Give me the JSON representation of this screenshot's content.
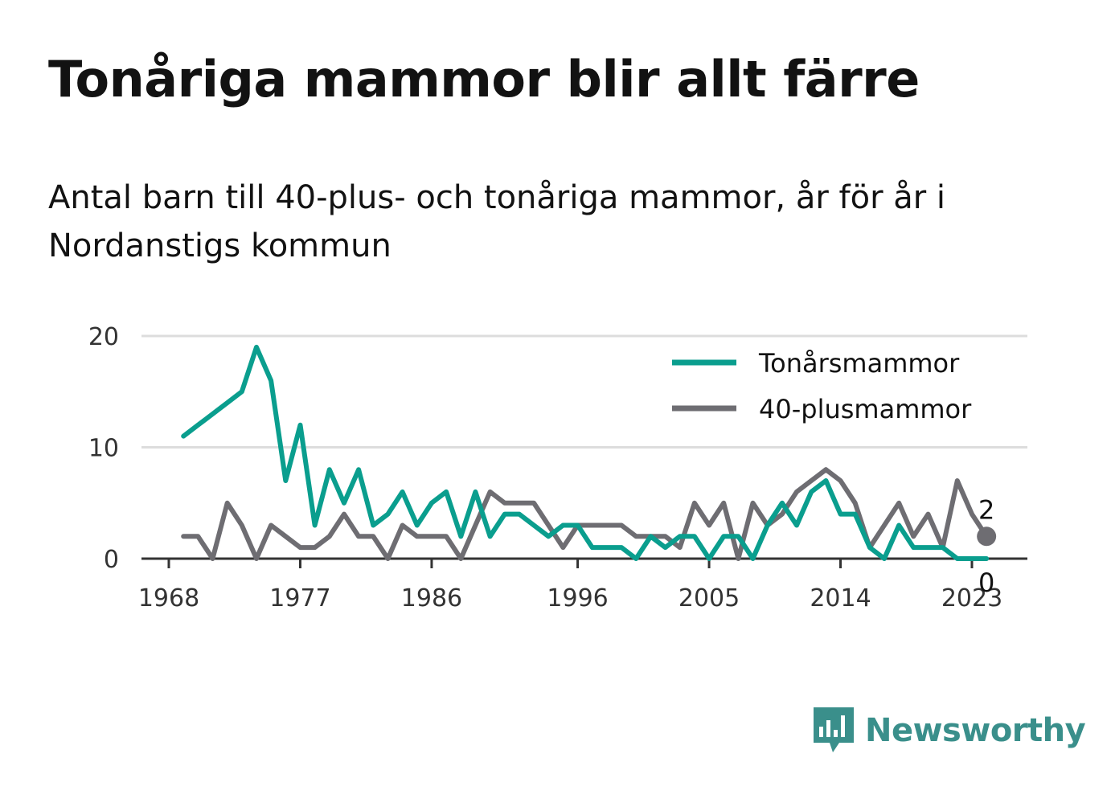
{
  "title": "Tonåriga mammor blir allt färre",
  "subtitle": "Antal barn till 40-plus- och tonåriga mammor, år för år i Nordanstigs kommun",
  "brand": {
    "name": "Newsworthy",
    "color": "#3a8f8b",
    "icon": "bar-chart-speech-bubble-icon"
  },
  "chart_data": {
    "type": "line",
    "xlim": [
      1966,
      2026
    ],
    "ylim": [
      0,
      20
    ],
    "y_ticks": [
      0,
      10,
      20
    ],
    "x_ticks": [
      1968,
      1977,
      1986,
      1996,
      2005,
      2014,
      2023
    ],
    "grid": true,
    "legend_position": "top-right",
    "series": [
      {
        "name": "Tonårsmammor",
        "color": "#0a9e8e",
        "x": [
          1969,
          1970,
          1971,
          1972,
          1973,
          1974,
          1975,
          1976,
          1977,
          1978,
          1979,
          1980,
          1981,
          1982,
          1983,
          1984,
          1985,
          1986,
          1987,
          1988,
          1989,
          1990,
          1991,
          1992,
          1993,
          1994,
          1995,
          1996,
          1997,
          1998,
          1999,
          2000,
          2001,
          2002,
          2003,
          2004,
          2005,
          2006,
          2007,
          2008,
          2009,
          2010,
          2011,
          2012,
          2013,
          2014,
          2015,
          2016,
          2017,
          2018,
          2019,
          2020,
          2021,
          2022,
          2023,
          2024
        ],
        "values": [
          11,
          12,
          13,
          14,
          15,
          19,
          16,
          7,
          12,
          3,
          8,
          5,
          8,
          3,
          4,
          6,
          3,
          5,
          6,
          2,
          6,
          2,
          4,
          4,
          3,
          2,
          3,
          3,
          1,
          1,
          1,
          0,
          2,
          1,
          2,
          2,
          0,
          2,
          2,
          0,
          3,
          5,
          3,
          6,
          7,
          4,
          4,
          1,
          0,
          3,
          1,
          1,
          1,
          0,
          0,
          0
        ],
        "end_label": "0"
      },
      {
        "name": "40-plusmammor",
        "color": "#6e6d72",
        "x": [
          1969,
          1970,
          1971,
          1972,
          1973,
          1974,
          1975,
          1976,
          1977,
          1978,
          1979,
          1980,
          1981,
          1982,
          1983,
          1984,
          1985,
          1986,
          1987,
          1988,
          1989,
          1990,
          1991,
          1992,
          1993,
          1994,
          1995,
          1996,
          1997,
          1998,
          1999,
          2000,
          2001,
          2002,
          2003,
          2004,
          2005,
          2006,
          2007,
          2008,
          2009,
          2010,
          2011,
          2012,
          2013,
          2014,
          2015,
          2016,
          2017,
          2018,
          2019,
          2020,
          2021,
          2022,
          2023,
          2024
        ],
        "values": [
          2,
          2,
          0,
          5,
          3,
          0,
          3,
          2,
          1,
          1,
          2,
          4,
          2,
          2,
          0,
          3,
          2,
          2,
          2,
          0,
          3,
          6,
          5,
          5,
          5,
          3,
          1,
          3,
          3,
          3,
          3,
          2,
          2,
          2,
          1,
          5,
          3,
          5,
          0,
          5,
          3,
          4,
          6,
          7,
          8,
          7,
          5,
          1,
          3,
          5,
          2,
          4,
          1,
          7,
          4,
          2
        ],
        "end_label": "2"
      }
    ]
  }
}
